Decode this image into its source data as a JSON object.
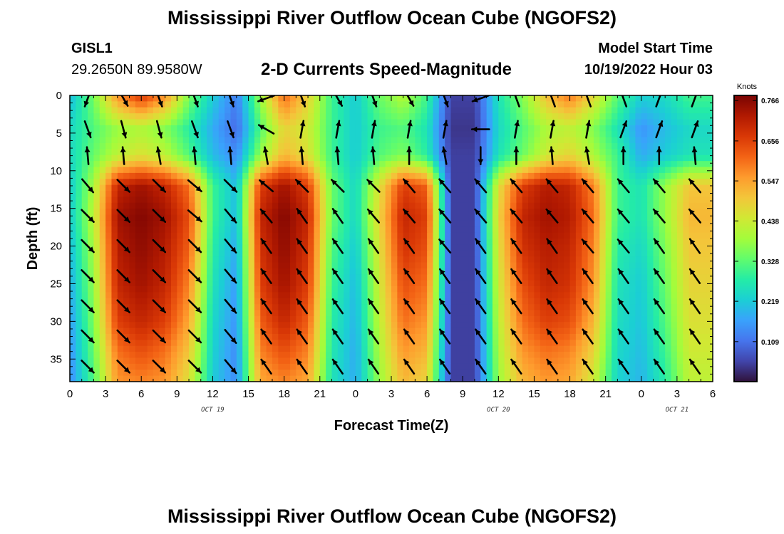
{
  "page_title": "Mississippi River Outflow Ocean Cube (NGOFS2)",
  "station": {
    "id": "GISL1",
    "coords": "29.2650N  89.9580W"
  },
  "model": {
    "label": "Model Start Time",
    "value": "10/19/2022 Hour 03"
  },
  "bottom_title": "Mississippi River Outflow Ocean Cube (NGOFS2)",
  "colors": {
    "colormap": [
      "#30123b",
      "#4145ab",
      "#4675ed",
      "#39a2fc",
      "#1bcfd4",
      "#24eca6",
      "#61fc6c",
      "#a4fc3b",
      "#d1e834",
      "#f3c63a",
      "#fe9b2d",
      "#f36315",
      "#d93806",
      "#b11901",
      "#7a0403"
    ],
    "arrow": "#000000",
    "frame": "#000000"
  },
  "chart_data": {
    "type": "heatmap",
    "title": "2-D Currents Speed-Magnitude",
    "xlabel": "Forecast Time(Z)",
    "ylabel": "Depth (ft)",
    "x_ticks": [
      "0",
      "3",
      "6",
      "9",
      "12",
      "15",
      "18",
      "21",
      "0",
      "3",
      "6",
      "9",
      "12",
      "15",
      "18",
      "21",
      "0",
      "3",
      "6"
    ],
    "x_range_hours": [
      0,
      54
    ],
    "date_labels": [
      {
        "label": "OCT 19",
        "hour": 12
      },
      {
        "label": "OCT 20",
        "hour": 36
      },
      {
        "label": "OCT 21",
        "hour": 51
      }
    ],
    "y_ticks": [
      "0",
      "5",
      "10",
      "15",
      "20",
      "25",
      "30",
      "35"
    ],
    "y_range_ft": [
      0,
      38
    ],
    "y_reversed": true,
    "colorbar": {
      "unit": "Knots",
      "min": 0.0,
      "max": 0.78,
      "tick_values": [
        0.766,
        0.656,
        0.547,
        0.438,
        0.328,
        0.219,
        0.109
      ],
      "tick_labels": [
        "0.766",
        "0.656",
        "0.547",
        "0.438",
        "0.328",
        "0.219",
        "0.109"
      ]
    },
    "layers": [
      {
        "depth_ft": 0.4,
        "speeds": [
          0.2,
          0.35,
          0.55,
          0.65,
          0.55,
          0.35,
          0.22,
          0.12,
          0.38,
          0.6,
          0.48,
          0.3,
          0.22,
          0.34,
          0.4,
          0.3,
          0.05,
          0.05,
          0.26,
          0.36,
          0.5,
          0.58,
          0.46,
          0.32,
          0.22,
          0.24,
          0.3
        ]
      },
      {
        "depth_ft": 4.5,
        "speeds": [
          0.24,
          0.32,
          0.38,
          0.4,
          0.36,
          0.28,
          0.18,
          0.1,
          0.32,
          0.48,
          0.44,
          0.3,
          0.22,
          0.3,
          0.32,
          0.26,
          0.04,
          0.04,
          0.24,
          0.32,
          0.4,
          0.42,
          0.36,
          0.26,
          0.15,
          0.2,
          0.24
        ]
      },
      {
        "depth_ft": 8.0,
        "speeds": [
          0.24,
          0.34,
          0.42,
          0.46,
          0.42,
          0.32,
          0.2,
          0.14,
          0.38,
          0.52,
          0.46,
          0.3,
          0.22,
          0.32,
          0.36,
          0.28,
          0.05,
          0.05,
          0.26,
          0.34,
          0.44,
          0.48,
          0.4,
          0.3,
          0.18,
          0.22,
          0.26
        ]
      },
      {
        "depth_ft": 12.0,
        "speeds": [
          0.22,
          0.4,
          0.7,
          0.74,
          0.7,
          0.6,
          0.3,
          0.2,
          0.66,
          0.74,
          0.66,
          0.34,
          0.24,
          0.46,
          0.66,
          0.62,
          0.05,
          0.05,
          0.46,
          0.66,
          0.72,
          0.7,
          0.58,
          0.3,
          0.26,
          0.38,
          0.5
        ]
      },
      {
        "depth_ft": 16.0,
        "speeds": [
          0.22,
          0.42,
          0.74,
          0.77,
          0.74,
          0.64,
          0.3,
          0.2,
          0.7,
          0.77,
          0.7,
          0.34,
          0.24,
          0.48,
          0.7,
          0.66,
          0.05,
          0.05,
          0.48,
          0.7,
          0.74,
          0.72,
          0.6,
          0.3,
          0.26,
          0.38,
          0.52
        ]
      },
      {
        "depth_ft": 20.0,
        "speeds": [
          0.2,
          0.4,
          0.72,
          0.76,
          0.72,
          0.62,
          0.28,
          0.18,
          0.68,
          0.76,
          0.68,
          0.32,
          0.22,
          0.46,
          0.68,
          0.64,
          0.05,
          0.05,
          0.46,
          0.68,
          0.72,
          0.7,
          0.58,
          0.28,
          0.24,
          0.36,
          0.5
        ]
      },
      {
        "depth_ft": 25.0,
        "speeds": [
          0.18,
          0.38,
          0.7,
          0.74,
          0.7,
          0.58,
          0.26,
          0.16,
          0.66,
          0.74,
          0.66,
          0.3,
          0.2,
          0.44,
          0.64,
          0.6,
          0.05,
          0.05,
          0.44,
          0.64,
          0.7,
          0.68,
          0.56,
          0.26,
          0.22,
          0.34,
          0.48
        ]
      },
      {
        "depth_ft": 30.0,
        "speeds": [
          0.16,
          0.36,
          0.66,
          0.7,
          0.66,
          0.54,
          0.24,
          0.15,
          0.62,
          0.7,
          0.62,
          0.28,
          0.19,
          0.42,
          0.6,
          0.56,
          0.05,
          0.05,
          0.42,
          0.6,
          0.66,
          0.64,
          0.52,
          0.25,
          0.21,
          0.32,
          0.46
        ]
      },
      {
        "depth_ft": 34.0,
        "speeds": [
          0.15,
          0.34,
          0.6,
          0.64,
          0.6,
          0.5,
          0.23,
          0.14,
          0.58,
          0.64,
          0.58,
          0.27,
          0.18,
          0.4,
          0.56,
          0.52,
          0.05,
          0.05,
          0.4,
          0.56,
          0.6,
          0.58,
          0.48,
          0.24,
          0.2,
          0.3,
          0.44
        ]
      },
      {
        "depth_ft": 38.0,
        "speeds": [
          0.14,
          0.32,
          0.56,
          0.58,
          0.56,
          0.46,
          0.22,
          0.14,
          0.54,
          0.58,
          0.54,
          0.26,
          0.18,
          0.38,
          0.52,
          0.48,
          0.05,
          0.05,
          0.38,
          0.52,
          0.56,
          0.54,
          0.44,
          0.23,
          0.19,
          0.28,
          0.42
        ]
      }
    ],
    "layer_hours": [
      0,
      2,
      4,
      6,
      8,
      10,
      12,
      14,
      16,
      18,
      20,
      22,
      24,
      26,
      28,
      30,
      32,
      34,
      36,
      38,
      40,
      42,
      44,
      46,
      48,
      50,
      52
    ],
    "vectors": {
      "hours": [
        1.5,
        4.5,
        7.5,
        10.5,
        13.5,
        16.5,
        19.5,
        22.5,
        25.5,
        28.5,
        31.5,
        34.5,
        37.5,
        40.5,
        43.5,
        46.5,
        49.5,
        52.5
      ],
      "depths_ft": [
        0.4,
        4.5,
        8.0,
        12.0,
        16.0,
        20.0,
        24.0,
        28.0,
        32.0,
        36.0
      ],
      "directions_deg": [
        [
          200,
          150,
          160,
          160,
          160,
          250,
          160,
          150,
          160,
          150,
          160,
          250,
          340,
          340,
          340,
          340,
          20,
          20
        ],
        [
          160,
          165,
          165,
          160,
          160,
          300,
          10,
          10,
          10,
          10,
          10,
          270,
          10,
          10,
          10,
          20,
          20,
          20
        ],
        [
          355,
          355,
          350,
          355,
          355,
          350,
          355,
          355,
          355,
          0,
          350,
          180,
          0,
          355,
          350,
          0,
          0,
          355
        ],
        [
          140,
          135,
          135,
          130,
          135,
          310,
          315,
          315,
          315,
          320,
          320,
          320,
          320,
          320,
          320,
          320,
          320,
          320
        ],
        [
          135,
          135,
          135,
          130,
          140,
          320,
          325,
          325,
          320,
          320,
          320,
          320,
          320,
          320,
          320,
          320,
          320,
          320
        ],
        [
          135,
          135,
          135,
          135,
          140,
          325,
          325,
          325,
          325,
          325,
          320,
          325,
          325,
          325,
          320,
          320,
          325,
          325
        ],
        [
          135,
          135,
          135,
          135,
          140,
          325,
          325,
          325,
          325,
          325,
          325,
          325,
          325,
          325,
          325,
          325,
          325,
          325
        ],
        [
          135,
          135,
          135,
          135,
          140,
          325,
          325,
          325,
          325,
          325,
          325,
          325,
          325,
          325,
          325,
          325,
          325,
          325
        ],
        [
          135,
          135,
          135,
          135,
          140,
          325,
          325,
          325,
          325,
          325,
          325,
          325,
          325,
          325,
          325,
          325,
          325,
          325
        ],
        [
          135,
          135,
          135,
          135,
          140,
          325,
          325,
          325,
          325,
          325,
          325,
          325,
          325,
          325,
          325,
          325,
          325,
          325
        ]
      ]
    }
  }
}
